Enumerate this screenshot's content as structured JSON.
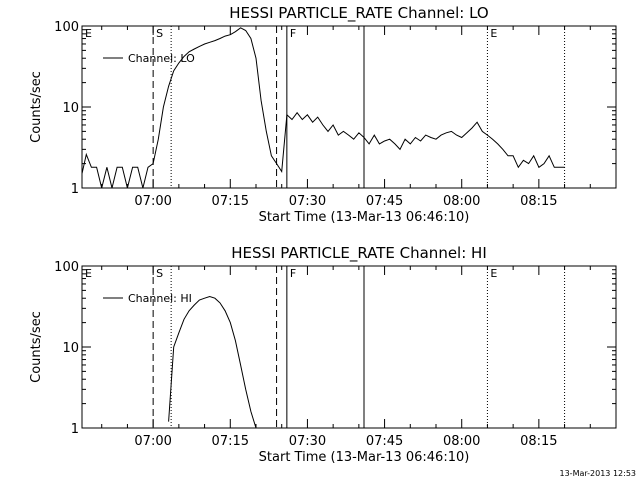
{
  "timestamp": "13-Mar-2013 12:53",
  "chart_data": [
    {
      "type": "line",
      "title": "HESSI PARTICLE_RATE Channel: LO",
      "xlabel": "Start Time (13-Mar-13 06:46:10)",
      "ylabel": "Counts/sec",
      "xlim": [
        "06:46:10",
        "08:30:00"
      ],
      "ylim": [
        1,
        100
      ],
      "yscale": "log",
      "x_ticks": [
        "07:00",
        "07:15",
        "07:30",
        "07:45",
        "08:00",
        "08:15"
      ],
      "y_ticks": [
        {
          "value": 1,
          "label": "1"
        },
        {
          "value": 10,
          "label": "10"
        },
        {
          "value": 100,
          "label": "100"
        }
      ],
      "legend": {
        "label": "Channel: LO",
        "position": "top-left"
      },
      "markers": [
        {
          "time": "06:46:10",
          "label": "E",
          "style": "none"
        },
        {
          "time": "07:00:00",
          "label": "S",
          "style": "dashed"
        },
        {
          "time": "07:03:30",
          "label": "",
          "style": "dotted"
        },
        {
          "time": "07:24:00",
          "label": "",
          "style": "dashed"
        },
        {
          "time": "07:26:00",
          "label": "F",
          "style": "solid"
        },
        {
          "time": "07:41:00",
          "label": "",
          "style": "solid"
        },
        {
          "time": "08:05:00",
          "label": "E",
          "style": "dotted"
        },
        {
          "time": "08:20:00",
          "label": "",
          "style": "dotted"
        }
      ],
      "series": [
        {
          "x": [
            "06:46:10",
            "06:47:00",
            "06:48:00",
            "06:49:00",
            "06:50:00",
            "06:51:00",
            "06:52:00",
            "06:53:00",
            "06:54:00",
            "06:55:00",
            "06:56:00",
            "06:57:00",
            "06:58:00",
            "06:59:00",
            "07:00:00",
            "07:01:00",
            "07:02:00",
            "07:03:00",
            "07:04:00",
            "07:05:00",
            "07:06:00",
            "07:07:00",
            "07:08:00",
            "07:09:00",
            "07:10:00",
            "07:11:00",
            "07:12:00",
            "07:13:00",
            "07:14:00",
            "07:15:00",
            "07:16:00",
            "07:17:00",
            "07:18:00",
            "07:19:00",
            "07:20:00",
            "07:21:00",
            "07:22:00",
            "07:23:00",
            "07:24:00",
            "07:25:00",
            "07:26:00",
            "07:27:00",
            "07:28:00",
            "07:29:00",
            "07:30:00",
            "07:31:00",
            "07:32:00",
            "07:33:00",
            "07:34:00",
            "07:35:00",
            "07:36:00",
            "07:37:00",
            "07:38:00",
            "07:39:00",
            "07:40:00",
            "07:41:00",
            "07:42:00",
            "07:43:00",
            "07:44:00",
            "07:45:00",
            "07:46:00",
            "07:47:00",
            "07:48:00",
            "07:49:00",
            "07:50:00",
            "07:51:00",
            "07:52:00",
            "07:53:00",
            "07:54:00",
            "07:55:00",
            "07:56:00",
            "07:57:00",
            "07:58:00",
            "07:59:00",
            "08:00:00",
            "08:01:00",
            "08:02:00",
            "08:03:00",
            "08:04:00",
            "08:05:00",
            "08:06:00",
            "08:07:00",
            "08:08:00",
            "08:09:00",
            "08:10:00",
            "08:11:00",
            "08:12:00",
            "08:13:00",
            "08:14:00",
            "08:15:00",
            "08:16:00",
            "08:17:00",
            "08:18:00",
            "08:19:00",
            "08:20:00"
          ],
          "y": [
            1.5,
            2.6,
            1.8,
            1.8,
            1,
            1.8,
            1,
            1.8,
            1.8,
            1,
            1.8,
            1.8,
            1,
            1.8,
            2,
            4,
            10,
            18,
            28,
            35,
            42,
            48,
            52,
            56,
            60,
            63,
            66,
            70,
            75,
            78,
            85,
            95,
            88,
            70,
            40,
            12,
            5,
            2.5,
            2.0,
            1.6,
            8,
            7,
            8.5,
            7,
            8,
            6.5,
            7.5,
            6,
            5,
            6,
            4.5,
            5,
            4.5,
            4,
            4.8,
            4.2,
            3.5,
            4.5,
            3.5,
            3.8,
            4,
            3.5,
            3,
            4,
            3.5,
            4.2,
            3.8,
            4.5,
            4.2,
            4,
            4.5,
            4.8,
            5,
            4.5,
            4.2,
            4.8,
            5.5,
            6.5,
            5,
            4.5,
            4,
            3.5,
            3,
            2.5,
            2.5,
            1.8,
            2.2,
            2,
            2.5,
            1.8,
            2,
            2.5,
            1.8,
            1.8,
            1.8
          ]
        }
      ]
    },
    {
      "type": "line",
      "title": "HESSI PARTICLE_RATE Channel: HI",
      "xlabel": "Start Time (13-Mar-13 06:46:10)",
      "ylabel": "Counts/sec",
      "xlim": [
        "06:46:10",
        "08:30:00"
      ],
      "ylim": [
        1,
        100
      ],
      "yscale": "log",
      "x_ticks": [
        "07:00",
        "07:15",
        "07:30",
        "07:45",
        "08:00",
        "08:15"
      ],
      "y_ticks": [
        {
          "value": 1,
          "label": "1"
        },
        {
          "value": 10,
          "label": "10"
        },
        {
          "value": 100,
          "label": "100"
        }
      ],
      "legend": {
        "label": "Channel: HI",
        "position": "top-left"
      },
      "markers": [
        {
          "time": "06:46:10",
          "label": "E",
          "style": "none"
        },
        {
          "time": "07:00:00",
          "label": "S",
          "style": "dashed"
        },
        {
          "time": "07:03:30",
          "label": "",
          "style": "dotted"
        },
        {
          "time": "07:24:00",
          "label": "",
          "style": "dashed"
        },
        {
          "time": "07:26:00",
          "label": "F",
          "style": "solid"
        },
        {
          "time": "07:41:00",
          "label": "",
          "style": "solid"
        },
        {
          "time": "08:05:00",
          "label": "E",
          "style": "dotted"
        },
        {
          "time": "08:20:00",
          "label": "",
          "style": "dotted"
        }
      ],
      "series": [
        {
          "x": [
            "07:03:00",
            "07:04:00",
            "07:05:00",
            "07:06:00",
            "07:07:00",
            "07:08:00",
            "07:09:00",
            "07:10:00",
            "07:11:00",
            "07:12:00",
            "07:13:00",
            "07:14:00",
            "07:15:00",
            "07:16:00",
            "07:17:00",
            "07:18:00",
            "07:19:00",
            "07:20:00"
          ],
          "y": [
            1.2,
            10,
            15,
            22,
            28,
            33,
            38,
            40,
            42,
            40,
            35,
            28,
            20,
            12,
            6,
            3,
            1.6,
            1
          ]
        }
      ]
    }
  ]
}
